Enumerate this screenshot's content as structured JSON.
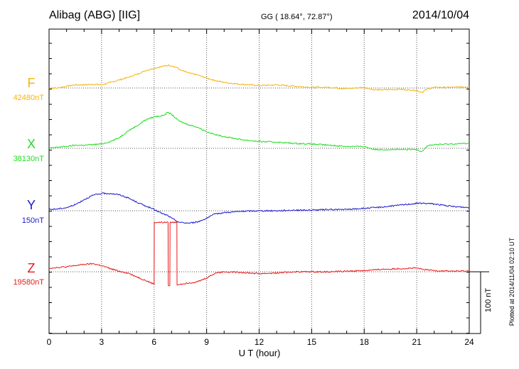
{
  "header": {
    "station": "Alibag (ABG)  [IIG]",
    "coords": "GG ( 18.64°,  72.87°)",
    "date": "2014/10/04"
  },
  "footer_note": "Plotted at 2014/11/04 02:10 UT",
  "scale_bar_label": "100 nT",
  "colors": {
    "F": "#f5b40a",
    "X": "#22dd22",
    "Y": "#1a1acc",
    "Z": "#e81818",
    "axis": "#000000",
    "grid": "#555555"
  },
  "chart_data": {
    "type": "line",
    "title": "Alibag (ABG)  [IIG]",
    "xlabel": "U T (hour)",
    "xlim": [
      0,
      24
    ],
    "xticks": [
      0,
      3,
      6,
      9,
      12,
      15,
      18,
      21,
      24
    ],
    "x_minor_step": 1,
    "scale_nT": 100,
    "grid": true,
    "series": [
      {
        "name": "F",
        "baseline_label": "42480nT",
        "color": "#f5b40a",
        "x": [
          0,
          0.5,
          1,
          1.5,
          2,
          2.5,
          3,
          3.5,
          4,
          4.5,
          5,
          5.5,
          6,
          6.5,
          6.8,
          7,
          7.3,
          7.5,
          8,
          8.5,
          9,
          9.5,
          10,
          11,
          12,
          13,
          14,
          15,
          16,
          17,
          18,
          18.6,
          19,
          20,
          21,
          21.3,
          21.6,
          22,
          23,
          24
        ],
        "values": [
          0,
          0,
          3,
          5,
          5,
          6,
          5,
          9,
          13,
          17,
          22,
          28,
          32,
          35,
          37,
          36,
          33,
          29,
          24,
          21,
          16,
          12,
          9,
          6,
          4,
          5,
          3,
          1,
          1,
          -1,
          1,
          -3,
          -3,
          -2,
          -4,
          -7,
          -2,
          1,
          1,
          2
        ]
      },
      {
        "name": "X",
        "baseline_label": "38130nT",
        "color": "#22dd22",
        "x": [
          0,
          0.5,
          1,
          1.5,
          2,
          2.5,
          3,
          3.5,
          4,
          4.5,
          5,
          5.5,
          6,
          6.5,
          6.8,
          7,
          7.3,
          7.5,
          8,
          8.5,
          9,
          9.5,
          10,
          11,
          12,
          13,
          14,
          15,
          16,
          17,
          18,
          18.6,
          19,
          20,
          21,
          21.3,
          21.6,
          22,
          23,
          24
        ],
        "values": [
          0,
          2,
          3,
          5,
          5,
          6,
          7,
          11,
          17,
          28,
          36,
          46,
          51,
          53,
          58,
          55,
          47,
          43,
          38,
          34,
          27,
          22,
          19,
          14,
          11,
          10,
          8,
          7,
          5,
          3,
          3,
          -2,
          -2,
          -2,
          -2,
          -5,
          4,
          6,
          7,
          8
        ]
      },
      {
        "name": "Y",
        "baseline_label": "150nT",
        "color": "#1a1acc",
        "x": [
          0,
          0.5,
          1,
          1.5,
          2,
          2.5,
          3,
          3.5,
          4,
          4.5,
          5,
          5.5,
          6,
          6.5,
          6.8,
          7,
          7.3,
          7.5,
          8,
          8.5,
          9,
          9.5,
          10,
          11,
          12,
          13,
          14,
          15,
          16,
          17,
          18,
          18.6,
          19,
          20,
          21,
          21.3,
          21.6,
          22,
          23,
          24
        ],
        "values": [
          2,
          3,
          5,
          10,
          18,
          25,
          28,
          28,
          26,
          21,
          14,
          8,
          2,
          -5,
          -8,
          -12,
          -17,
          -19,
          -20,
          -18,
          -12,
          -5,
          -3,
          -1,
          0,
          0,
          1,
          1,
          2,
          2,
          4,
          5,
          6,
          9,
          12,
          12,
          12,
          11,
          7,
          5
        ]
      },
      {
        "name": "Z",
        "baseline_label": "19580nT",
        "color": "#e81818",
        "x": [
          0,
          0.5,
          1,
          1.5,
          2,
          2.5,
          3,
          3.5,
          4,
          4.5,
          5,
          5.5,
          6,
          6.01,
          6.8,
          6.81,
          6.9,
          6.91,
          7.3,
          7.31,
          7.5,
          8,
          8.5,
          9,
          9.5,
          10,
          11,
          12,
          13,
          14,
          15,
          16,
          17,
          18,
          18.6,
          19,
          20,
          21,
          21.3,
          21.6,
          22,
          23,
          24
        ],
        "values": [
          6,
          7,
          8,
          10,
          12,
          13,
          10,
          5,
          1,
          -2,
          -8,
          -14,
          -20,
          80,
          80,
          -22,
          -22,
          80,
          80,
          -21,
          -20,
          -18,
          -16,
          -10,
          -2,
          0,
          -1,
          -3,
          -2,
          0,
          0,
          0,
          1,
          2,
          3,
          4,
          5,
          6,
          4,
          3,
          2,
          1,
          1
        ]
      }
    ]
  }
}
